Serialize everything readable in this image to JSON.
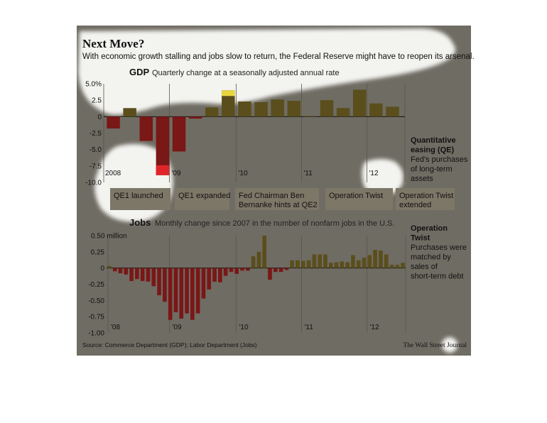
{
  "title": "Next Move?",
  "subtitle": "With economic growth stalling and jobs slow to return, the Federal Reserve might have to reopen its arsenal.",
  "source": "Source: Commerce Department (GDP); Labor Department (Jobs)",
  "credit": "The Wall Street Journal",
  "colors": {
    "background": "#6f6c63",
    "positive": "#5a4e1c",
    "negative": "#7a1717",
    "highlight_pos": "#e8d641",
    "highlight_neg": "#e0252a",
    "box": "#7d7768",
    "halo": "#f3f3f0"
  },
  "events": [
    {
      "label": "QE1 launched"
    },
    {
      "label": "QE1 expanded"
    },
    {
      "label": "Fed Chairman Ben Bernanke hints at QE2"
    },
    {
      "label": "Operation Twist"
    },
    {
      "label": "Operation Twist extended"
    }
  ],
  "sidebar": {
    "qe_title": "Quantitative easing (QE)",
    "qe_text": "Fed's purchases of long-term assets",
    "twist_title": "Operation Twist",
    "twist_text": "Purchases were matched by sales of short-term debt"
  },
  "chart_data": [
    {
      "type": "bar",
      "name": "GDP",
      "title": "GDP",
      "subtitle": "Quarterly change at a seasonally adjusted annual rate",
      "ylim": [
        -10,
        5
      ],
      "y_ticks": [
        "5.0%",
        "2.5",
        "0",
        "-2.5",
        "-5.0",
        "-7.5",
        "-10.0"
      ],
      "x_tick_labels": [
        "2008",
        "'09",
        "'10",
        "'11",
        "'12"
      ],
      "categories": [
        "2008 Q1",
        "2008 Q2",
        "2008 Q3",
        "2008 Q4",
        "2009 Q1",
        "2009 Q2",
        "2009 Q3",
        "2009 Q4",
        "2010 Q1",
        "2010 Q2",
        "2010 Q3",
        "2010 Q4",
        "2011 Q1",
        "2011 Q2",
        "2011 Q3",
        "2011 Q4",
        "2012 Q1",
        "2012 Q2"
      ],
      "values": [
        -1.8,
        1.3,
        -3.7,
        -8.9,
        -5.3,
        -0.3,
        1.4,
        4.0,
        2.3,
        2.2,
        2.6,
        2.4,
        0.1,
        2.5,
        1.3,
        4.1,
        2.0,
        1.5
      ],
      "highlight_indices": [
        3,
        7
      ]
    },
    {
      "type": "bar",
      "name": "Jobs",
      "title": "Jobs",
      "subtitle": "Monthly change since 2007 in the number of nonfarm jobs in the U.S.",
      "ylim": [
        -1.0,
        0.5
      ],
      "y_ticks": [
        "0.50 million",
        "0.25",
        "0",
        "-0.25",
        "-0.50",
        "-0.75",
        "-1.00"
      ],
      "x_tick_labels": [
        "'08",
        "'09",
        "'10",
        "'11",
        "'12"
      ],
      "values": [
        0.03,
        -0.05,
        -0.08,
        -0.1,
        -0.2,
        -0.17,
        -0.2,
        -0.21,
        -0.28,
        -0.42,
        -0.52,
        -0.8,
        -0.68,
        -0.78,
        -0.7,
        -0.8,
        -0.7,
        -0.47,
        -0.33,
        -0.21,
        -0.22,
        -0.12,
        -0.06,
        -0.09,
        -0.04,
        -0.04,
        0.18,
        0.25,
        0.5,
        -0.18,
        -0.06,
        -0.06,
        -0.03,
        0.12,
        0.12,
        0.11,
        0.12,
        0.21,
        0.21,
        0.21,
        0.08,
        0.09,
        0.1,
        0.09,
        0.2,
        0.12,
        0.16,
        0.2,
        0.28,
        0.27,
        0.21,
        0.05,
        0.05,
        0.08
      ]
    }
  ]
}
